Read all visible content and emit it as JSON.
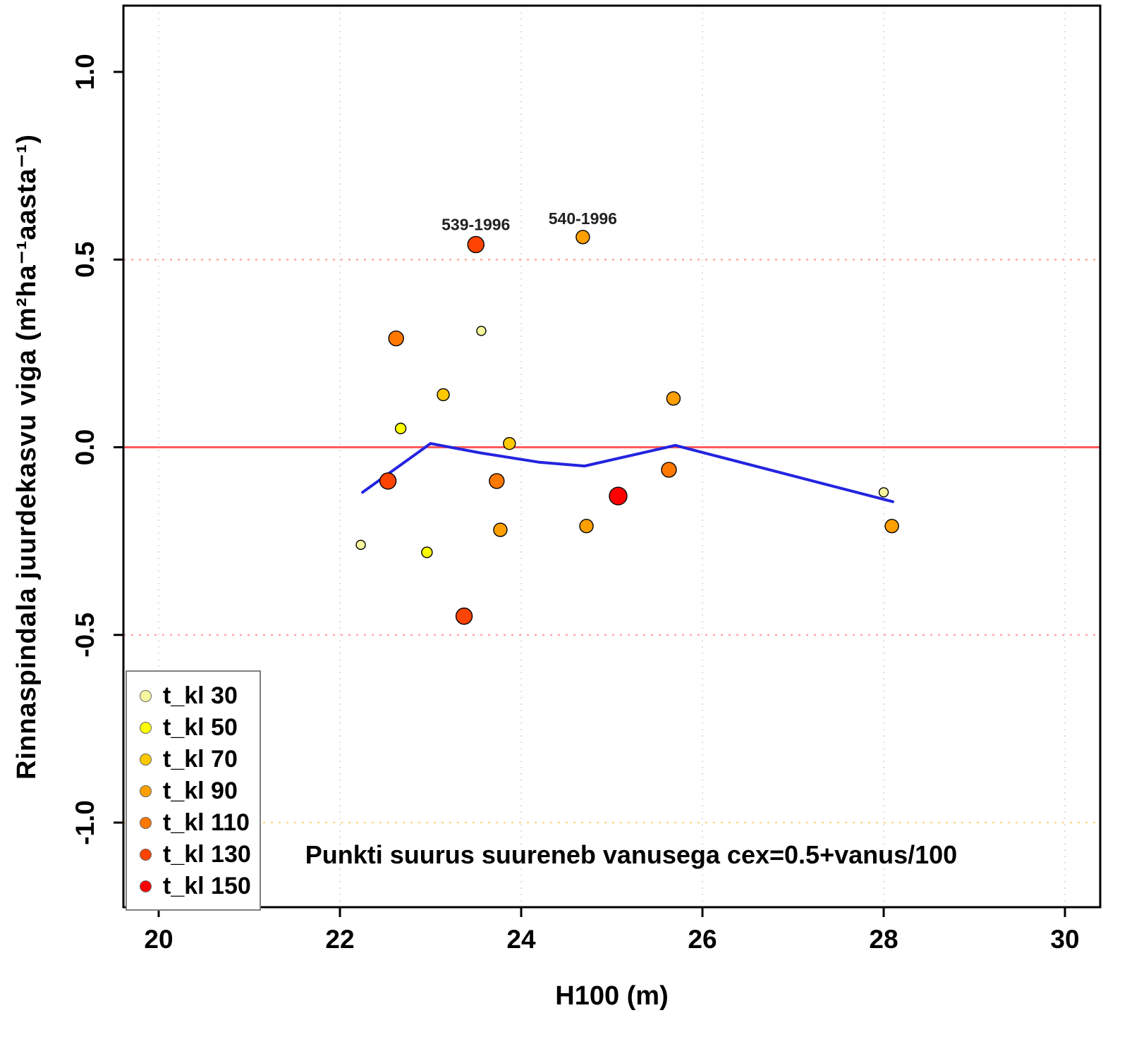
{
  "chart_data": {
    "type": "scatter",
    "title": "",
    "xlabel": "H100 (m)",
    "ylabel": "Rinnaspindala juurdekasvu viga  (m²ha⁻¹aasta⁻¹)",
    "annotation": "Punkti suurus suureneb vanusega cex=0.5+vanus/100",
    "size_rule": "cex=0.5+vanus/100",
    "xlim": [
      19.6,
      30.4
    ],
    "ylim": [
      -1.22,
      1.18
    ],
    "x_ticks": [
      20,
      22,
      24,
      26,
      28,
      30
    ],
    "y_ticks": [
      -1.0,
      -0.5,
      0.0,
      0.5,
      1.0
    ],
    "x_tick_labels": [
      "20",
      "22",
      "24",
      "26",
      "28",
      "30"
    ],
    "y_tick_labels": [
      "-1.0",
      "-0.5",
      "0.0",
      "0.5",
      "1.0"
    ],
    "grid": {
      "vertical_x": [
        20,
        22,
        24,
        26,
        28,
        30
      ],
      "color": "#DCDCDC",
      "style": "dotted"
    },
    "reference_lines": [
      {
        "y": 0.5,
        "color": "#FFA8A8",
        "style": "dotted",
        "width": 2.5
      },
      {
        "y": 0.0,
        "color": "#FF5A5A",
        "style": "solid",
        "width": 3
      },
      {
        "y": -0.5,
        "color": "#FFA8A8",
        "style": "dotted",
        "width": 2.5
      },
      {
        "y": -1.0,
        "color": "#FFD080",
        "style": "dotted",
        "width": 2
      }
    ],
    "classes": [
      {
        "t_kl": 30,
        "label": "t_kl 30",
        "color": "#F6F69E"
      },
      {
        "t_kl": 50,
        "label": "t_kl 50",
        "color": "#FFFF00"
      },
      {
        "t_kl": 70,
        "label": "t_kl 70",
        "color": "#FFC800"
      },
      {
        "t_kl": 90,
        "label": "t_kl 90",
        "color": "#FFA000"
      },
      {
        "t_kl": 110,
        "label": "t_kl 110",
        "color": "#FF7800"
      },
      {
        "t_kl": 130,
        "label": "t_kl 130",
        "color": "#FF4300"
      },
      {
        "t_kl": 150,
        "label": "t_kl 150",
        "color": "#FF0000"
      }
    ],
    "points": [
      {
        "x": 22.23,
        "y": -0.26,
        "t_kl": 30
      },
      {
        "x": 22.62,
        "y": 0.29,
        "t_kl": 110
      },
      {
        "x": 22.67,
        "y": 0.05,
        "t_kl": 50
      },
      {
        "x": 22.53,
        "y": -0.09,
        "t_kl": 130
      },
      {
        "x": 22.96,
        "y": -0.28,
        "t_kl": 50
      },
      {
        "x": 23.14,
        "y": 0.14,
        "t_kl": 70
      },
      {
        "x": 23.56,
        "y": 0.31,
        "t_kl": 30
      },
      {
        "x": 23.5,
        "y": 0.54,
        "t_kl": 130,
        "label": "539-1996"
      },
      {
        "x": 23.37,
        "y": -0.45,
        "t_kl": 130
      },
      {
        "x": 23.87,
        "y": 0.01,
        "t_kl": 70
      },
      {
        "x": 23.73,
        "y": -0.09,
        "t_kl": 110
      },
      {
        "x": 23.77,
        "y": -0.22,
        "t_kl": 90
      },
      {
        "x": 24.68,
        "y": 0.56,
        "t_kl": 90,
        "label": "540-1996"
      },
      {
        "x": 24.72,
        "y": -0.21,
        "t_kl": 90
      },
      {
        "x": 25.07,
        "y": -0.13,
        "t_kl": 150
      },
      {
        "x": 25.68,
        "y": 0.13,
        "t_kl": 90
      },
      {
        "x": 25.63,
        "y": -0.06,
        "t_kl": 110
      },
      {
        "x": 28.0,
        "y": -0.12,
        "t_kl": 30
      },
      {
        "x": 28.09,
        "y": -0.21,
        "t_kl": 90
      }
    ],
    "trend_line": {
      "color": "#2424E0",
      "points": [
        {
          "x": 22.25,
          "y": -0.12
        },
        {
          "x": 23.0,
          "y": 0.01
        },
        {
          "x": 23.55,
          "y": -0.015
        },
        {
          "x": 24.2,
          "y": -0.04
        },
        {
          "x": 24.7,
          "y": -0.05
        },
        {
          "x": 25.7,
          "y": 0.005
        },
        {
          "x": 28.1,
          "y": -0.145
        }
      ]
    }
  }
}
